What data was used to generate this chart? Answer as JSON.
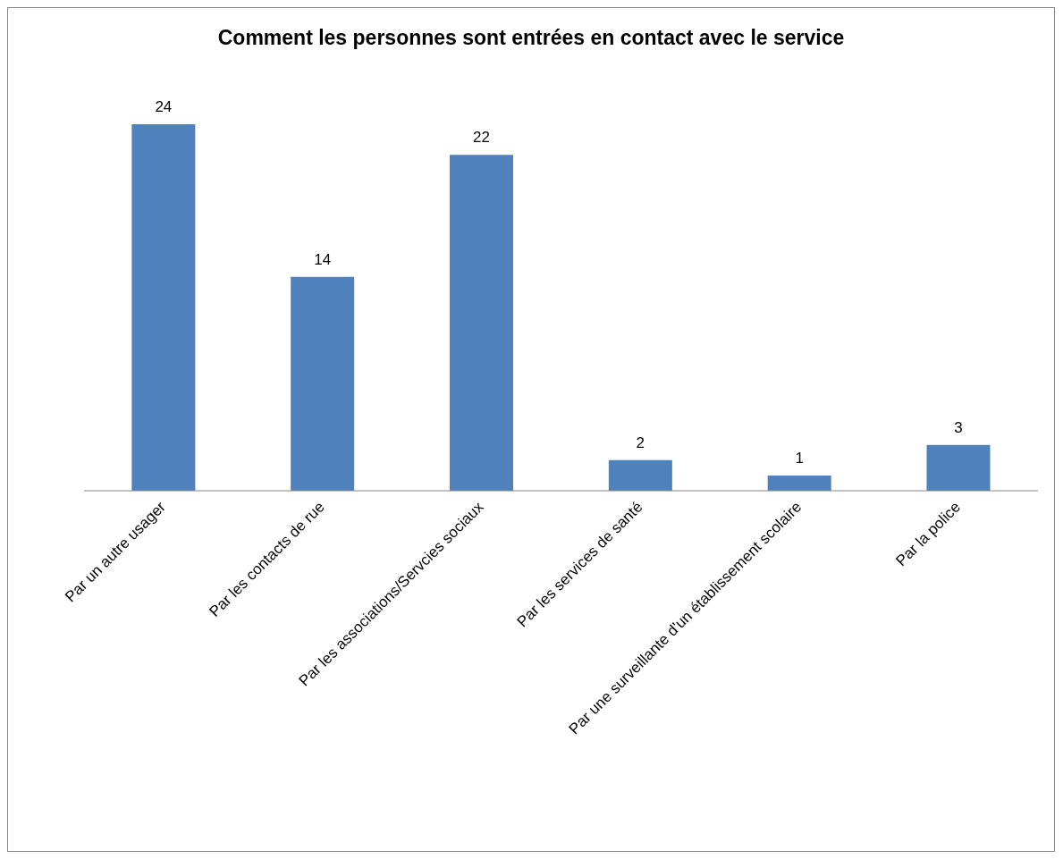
{
  "chart_data": {
    "type": "bar",
    "title": "Comment les personnes sont entrées en contact avec le service",
    "categories": [
      "Par un autre usager",
      "Par les contacts de rue",
      "Par les associations/Servcies sociaux",
      "Par les services de santé",
      "Par une surveillante d'un établissement scolaire",
      "Par la police"
    ],
    "values": [
      24,
      14,
      22,
      2,
      1,
      3
    ],
    "color": "#4f81bd",
    "data_labels": true,
    "tick_labels": "x"
  }
}
